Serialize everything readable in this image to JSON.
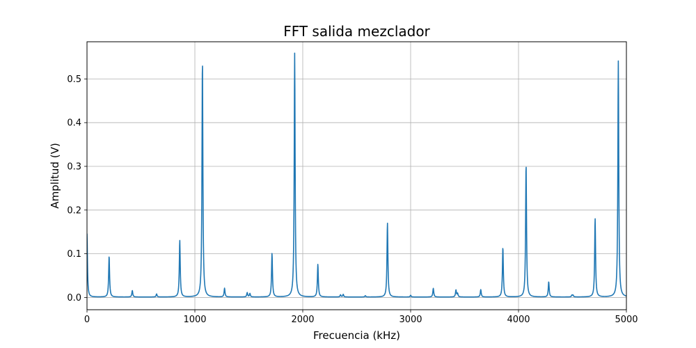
{
  "chart_data": {
    "type": "line",
    "title": "FFT salida mezclador",
    "xlabel": "Frecuencia (kHz)",
    "ylabel": "Amplitud (V)",
    "xlim": [
      0,
      5000
    ],
    "ylim": [
      -0.028,
      0.585
    ],
    "grid": true,
    "line_color": "#1f77b4",
    "xticks": [
      {
        "value": 0,
        "label": "0"
      },
      {
        "value": 1000,
        "label": "1000"
      },
      {
        "value": 2000,
        "label": "2000"
      },
      {
        "value": 3000,
        "label": "3000"
      },
      {
        "value": 4000,
        "label": "4000"
      },
      {
        "value": 5000,
        "label": "5000"
      }
    ],
    "yticks": [
      {
        "value": 0.0,
        "label": "0.0"
      },
      {
        "value": 0.1,
        "label": "0.1"
      },
      {
        "value": 0.2,
        "label": "0.2"
      },
      {
        "value": 0.3,
        "label": "0.3"
      },
      {
        "value": 0.4,
        "label": "0.4"
      },
      {
        "value": 0.5,
        "label": "0.5"
      }
    ],
    "baseline": 0.001,
    "peaks": [
      {
        "x": 0,
        "y": 0.145
      },
      {
        "x": 205,
        "y": 0.094
      },
      {
        "x": 420,
        "y": 0.015
      },
      {
        "x": 645,
        "y": 0.007
      },
      {
        "x": 860,
        "y": 0.13
      },
      {
        "x": 1070,
        "y": 0.543
      },
      {
        "x": 1275,
        "y": 0.02
      },
      {
        "x": 1485,
        "y": 0.01
      },
      {
        "x": 1510,
        "y": 0.008
      },
      {
        "x": 1715,
        "y": 0.1
      },
      {
        "x": 1925,
        "y": 0.558
      },
      {
        "x": 2140,
        "y": 0.075
      },
      {
        "x": 2350,
        "y": 0.005
      },
      {
        "x": 2375,
        "y": 0.006
      },
      {
        "x": 2580,
        "y": 0.003
      },
      {
        "x": 2785,
        "y": 0.17
      },
      {
        "x": 3000,
        "y": 0.004
      },
      {
        "x": 3210,
        "y": 0.02
      },
      {
        "x": 3420,
        "y": 0.016
      },
      {
        "x": 3435,
        "y": 0.008
      },
      {
        "x": 3650,
        "y": 0.017
      },
      {
        "x": 3855,
        "y": 0.114
      },
      {
        "x": 4070,
        "y": 0.305
      },
      {
        "x": 4280,
        "y": 0.035
      },
      {
        "x": 4495,
        "y": 0.004
      },
      {
        "x": 4505,
        "y": 0.004
      },
      {
        "x": 4710,
        "y": 0.18
      },
      {
        "x": 4925,
        "y": 0.54
      }
    ]
  }
}
